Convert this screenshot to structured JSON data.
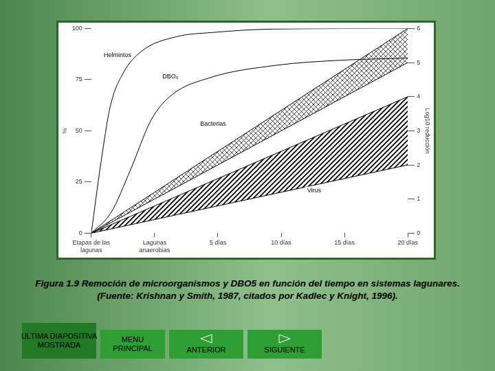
{
  "chart_data": {
    "type": "line",
    "ylabel": "%",
    "y2label": "Log10 reducción",
    "xlim": [
      0,
      5
    ],
    "xticks": [
      {
        "value": 0,
        "label": "Etapas de las lagunas"
      },
      {
        "value": 1,
        "label": "Lagunas anaerobias"
      },
      {
        "value": 2,
        "label": "5 días"
      },
      {
        "value": 3,
        "label": "10 días"
      },
      {
        "value": 4,
        "label": "15 días"
      },
      {
        "value": 5,
        "label": "20 días"
      }
    ],
    "ylim": [
      0,
      100
    ],
    "yticks": [
      0,
      25,
      50,
      75,
      100
    ],
    "y2lim": [
      0,
      6
    ],
    "y2ticks": [
      0,
      1,
      2,
      3,
      4,
      5,
      6
    ],
    "grid": false,
    "series": [
      {
        "name": "Helmintos",
        "type": "line",
        "color": "#000000",
        "x": [
          0,
          0.15,
          0.3,
          0.5,
          0.8,
          1.35,
          1.9,
          2.9,
          5
        ],
        "values": [
          0,
          34,
          62,
          78,
          89,
          96,
          98,
          99.7,
          100
        ]
      },
      {
        "name": "DBO₅",
        "type": "line",
        "color": "#000000",
        "x": [
          0,
          0.31,
          0.62,
          0.94,
          1.25,
          1.88,
          2.92,
          3.96,
          5
        ],
        "values": [
          0,
          10,
          31,
          55,
          67,
          76,
          82,
          84.5,
          85.5
        ]
      },
      {
        "name": "Bacterias",
        "type": "band",
        "axis": "y2",
        "color": "#000000",
        "x": [
          0,
          5
        ],
        "low": [
          0,
          5
        ],
        "values": [
          0,
          6
        ]
      },
      {
        "name": "Virus",
        "type": "band",
        "axis": "y2",
        "color": "#000000",
        "x": [
          0,
          5
        ],
        "low": [
          0,
          2
        ],
        "values": [
          0,
          4
        ]
      }
    ]
  },
  "caption": [
    "Figura 1.9 Remoción de microorganismos y DBO5 en función del tiempo en sistemas lagunares.",
    "(Fuente:  Krishnan y Smith, 1987, citados por Kadlec y Knight, 1996)."
  ],
  "buttons": [
    {
      "lines": [
        "ULTIMA DIAPOSITIVA",
        "MOSTRADA"
      ]
    },
    {
      "lines": [
        "MENU",
        "PRINCIPAL"
      ]
    },
    {
      "lines": [
        "ANTERIOR"
      ]
    },
    {
      "lines": [
        "SIGUIENTE"
      ]
    }
  ]
}
